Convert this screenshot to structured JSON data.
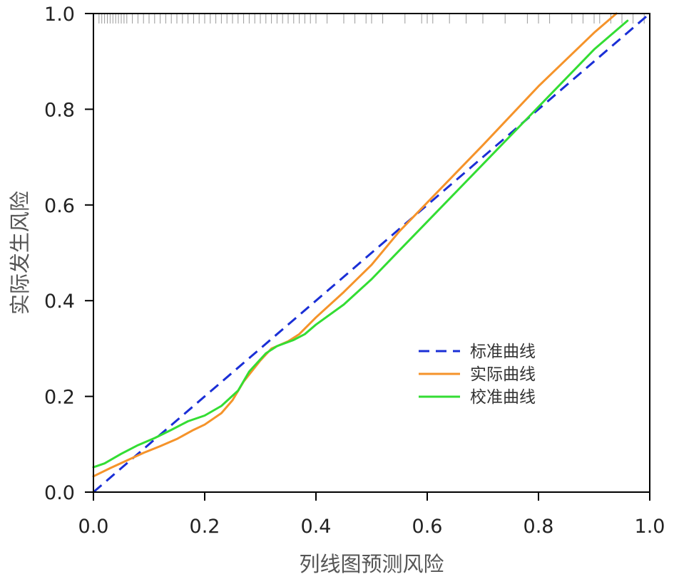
{
  "chart_data": {
    "type": "line",
    "xlabel": "列线图预测风险",
    "ylabel": "实际发生风险",
    "xlim": [
      0,
      1
    ],
    "ylim": [
      0,
      1
    ],
    "x_ticks": [
      "0.0",
      "0.2",
      "0.4",
      "0.6",
      "0.8",
      "1.0"
    ],
    "y_ticks": [
      "0.0",
      "0.2",
      "0.4",
      "0.6",
      "0.8",
      "1.0"
    ],
    "grid": false,
    "legend_position": "right",
    "series": [
      {
        "name": "标准曲线",
        "color": "#1a2fd6",
        "dash": true,
        "points": [
          [
            0,
            0
          ],
          [
            1,
            1
          ]
        ]
      },
      {
        "name": "实际曲线",
        "color": "#f5932a",
        "dash": false,
        "points": [
          [
            0,
            0.033
          ],
          [
            0.03,
            0.05
          ],
          [
            0.06,
            0.066
          ],
          [
            0.09,
            0.082
          ],
          [
            0.12,
            0.096
          ],
          [
            0.15,
            0.111
          ],
          [
            0.18,
            0.13
          ],
          [
            0.2,
            0.141
          ],
          [
            0.23,
            0.165
          ],
          [
            0.25,
            0.192
          ],
          [
            0.27,
            0.231
          ],
          [
            0.3,
            0.275
          ],
          [
            0.32,
            0.3
          ],
          [
            0.35,
            0.315
          ],
          [
            0.37,
            0.33
          ],
          [
            0.4,
            0.365
          ],
          [
            0.45,
            0.418
          ],
          [
            0.5,
            0.475
          ],
          [
            0.55,
            0.545
          ],
          [
            0.6,
            0.605
          ],
          [
            0.7,
            0.725
          ],
          [
            0.8,
            0.848
          ],
          [
            0.9,
            0.96
          ],
          [
            0.94,
            1.0
          ]
        ]
      },
      {
        "name": "校准曲线",
        "color": "#33dd33",
        "dash": false,
        "points": [
          [
            0,
            0.052
          ],
          [
            0.02,
            0.06
          ],
          [
            0.05,
            0.08
          ],
          [
            0.08,
            0.098
          ],
          [
            0.11,
            0.113
          ],
          [
            0.14,
            0.13
          ],
          [
            0.17,
            0.148
          ],
          [
            0.2,
            0.16
          ],
          [
            0.23,
            0.18
          ],
          [
            0.26,
            0.212
          ],
          [
            0.28,
            0.252
          ],
          [
            0.31,
            0.29
          ],
          [
            0.33,
            0.305
          ],
          [
            0.36,
            0.318
          ],
          [
            0.38,
            0.33
          ],
          [
            0.4,
            0.35
          ],
          [
            0.45,
            0.392
          ],
          [
            0.5,
            0.445
          ],
          [
            0.55,
            0.505
          ],
          [
            0.6,
            0.565
          ],
          [
            0.7,
            0.685
          ],
          [
            0.8,
            0.805
          ],
          [
            0.9,
            0.925
          ],
          [
            0.96,
            0.985
          ]
        ]
      }
    ],
    "rug_x": [
      0.01,
      0.015,
      0.02,
      0.025,
      0.03,
      0.035,
      0.04,
      0.045,
      0.05,
      0.055,
      0.06,
      0.07,
      0.08,
      0.09,
      0.1,
      0.11,
      0.12,
      0.13,
      0.14,
      0.15,
      0.16,
      0.17,
      0.18,
      0.19,
      0.2,
      0.21,
      0.22,
      0.23,
      0.24,
      0.25,
      0.26,
      0.27,
      0.28,
      0.29,
      0.3,
      0.31,
      0.32,
      0.33,
      0.34,
      0.35,
      0.36,
      0.37,
      0.38,
      0.39,
      0.4,
      0.42,
      0.45,
      0.47,
      0.49,
      0.5,
      0.52,
      0.56,
      0.59,
      0.6,
      0.61,
      0.64,
      0.67,
      0.7,
      0.74,
      0.78,
      0.8,
      0.82,
      0.86,
      0.88,
      0.9,
      0.91,
      0.93,
      0.95,
      0.97,
      0.99
    ]
  }
}
